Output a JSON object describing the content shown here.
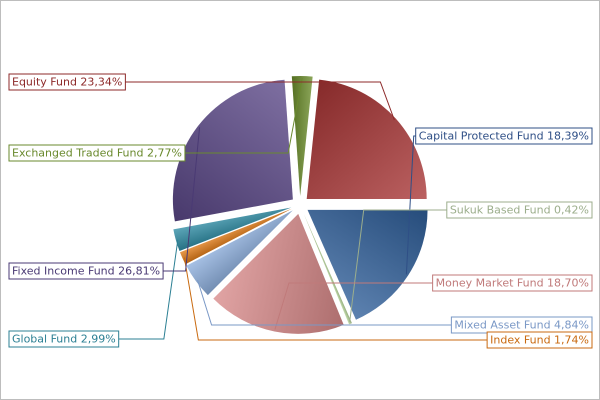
{
  "chart_data": {
    "type": "pie",
    "slices": [
      {
        "name": "Capital Protected Fund",
        "value": 18.39,
        "display": "18,39%",
        "color": "#2f5f9a",
        "label_color": "#2f4f86"
      },
      {
        "name": "Sukuk Based Fund",
        "value": 0.42,
        "display": "0,42%",
        "color": "#b7d59a",
        "label_color": "#9cae8c"
      },
      {
        "name": "Money Market Fund",
        "value": 18.7,
        "display": "18,70%",
        "color": "#d88a8a",
        "label_color": "#c07a7a"
      },
      {
        "name": "Mixed Asset Fund",
        "value": 4.84,
        "display": "4,84%",
        "color": "#8eb0de",
        "label_color": "#7a98c6"
      },
      {
        "name": "Index Fund",
        "value": 1.74,
        "display": "1,74%",
        "color": "#e07b17",
        "label_color": "#c96a10"
      },
      {
        "name": "Global Fund",
        "value": 2.99,
        "display": "2,99%",
        "color": "#2f8da5",
        "label_color": "#2b7f93"
      },
      {
        "name": "Fixed Income Fund",
        "value": 26.81,
        "display": "26,81%",
        "color": "#5a4787",
        "label_color": "#4a3a74"
      },
      {
        "name": "Exchanged Traded Fund",
        "value": 2.77,
        "display": "2,77%",
        "color": "#6a8c2a",
        "label_color": "#6a8a2e"
      },
      {
        "name": "Equity Fund",
        "value": 23.34,
        "display": "23,34%",
        "color": "#a83434",
        "label_color": "#8d2a2a"
      }
    ],
    "start_angle_deg": 0,
    "direction": "clockwise",
    "exploded": true,
    "legend": "none"
  }
}
